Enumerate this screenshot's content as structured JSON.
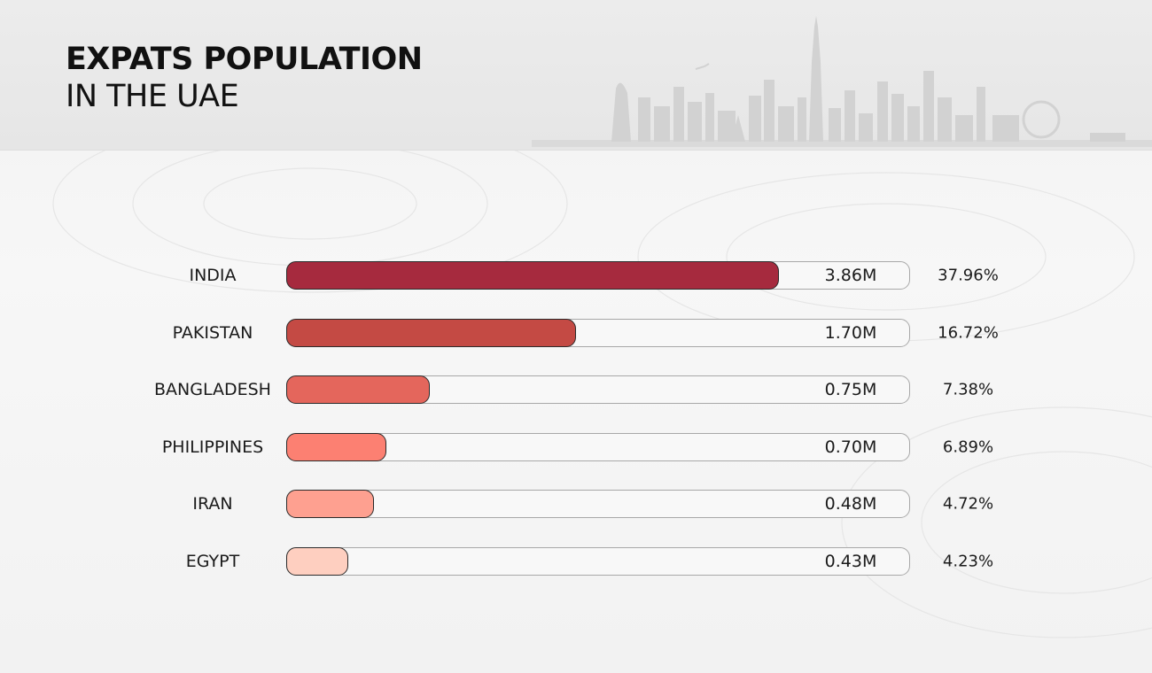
{
  "header": {
    "title_line1": "EXPATS POPULATION",
    "title_line2": "IN THE UAE"
  },
  "chart_data": {
    "type": "bar",
    "orientation": "horizontal",
    "title": "EXPATS POPULATION IN THE UAE",
    "categories": [
      "INDIA",
      "PAKISTAN",
      "BANGLADESH",
      "PHILIPPINES",
      "IRAN",
      "EGYPT"
    ],
    "values": [
      3.86,
      1.7,
      0.75,
      0.7,
      0.48,
      0.43
    ],
    "value_labels": [
      "3.86M",
      "1.70M",
      "0.75M",
      "0.70M",
      "0.48M",
      "0.43M"
    ],
    "percentages": [
      "37.96%",
      "16.72%",
      "7.38%",
      "6.89%",
      "4.72%",
      "4.23%"
    ],
    "bar_fill_fractions": [
      0.79,
      0.465,
      0.23,
      0.16,
      0.14,
      0.1
    ],
    "colors": [
      "#a62a3e",
      "#c44a44",
      "#e4665c",
      "#fc8072",
      "#fea090",
      "#fecfc0"
    ],
    "grid": false,
    "legend": "none"
  }
}
